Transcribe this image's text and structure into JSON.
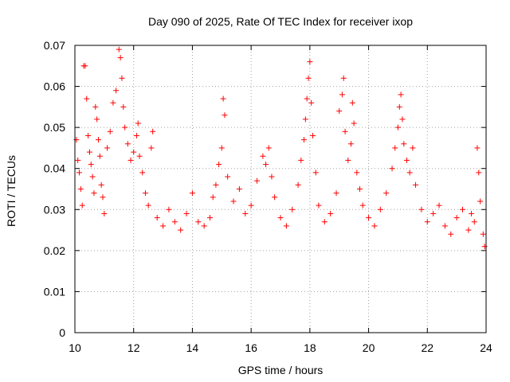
{
  "chart_data": {
    "type": "scatter",
    "title": "Day 090 of 2025, Rate Of TEC Index for receiver ixop",
    "xlabel": "GPS time / hours",
    "ylabel": "ROTI / TECUs",
    "xlim": [
      10,
      24
    ],
    "ylim": [
      0,
      0.07
    ],
    "x_ticks": [
      10,
      12,
      14,
      16,
      18,
      20,
      22,
      24
    ],
    "x_tick_labels": [
      "10",
      "12",
      "14",
      "16",
      "18",
      "20",
      "22",
      "24"
    ],
    "y_ticks": [
      0,
      0.01,
      0.02,
      0.03,
      0.04,
      0.05,
      0.06,
      0.07
    ],
    "y_tick_labels": [
      "0",
      "0.01",
      "0.02",
      "0.03",
      "0.04",
      "0.05",
      "0.06",
      "0.07"
    ],
    "grid": true,
    "marker": "+",
    "color": "#ff0000",
    "series": [
      {
        "name": "ROTI",
        "points": [
          [
            10.05,
            0.047
          ],
          [
            10.1,
            0.042
          ],
          [
            10.15,
            0.039
          ],
          [
            10.2,
            0.035
          ],
          [
            10.25,
            0.031
          ],
          [
            10.3,
            0.065
          ],
          [
            10.35,
            0.065
          ],
          [
            10.4,
            0.057
          ],
          [
            10.45,
            0.048
          ],
          [
            10.5,
            0.044
          ],
          [
            10.55,
            0.041
          ],
          [
            10.6,
            0.038
          ],
          [
            10.65,
            0.034
          ],
          [
            10.7,
            0.055
          ],
          [
            10.75,
            0.052
          ],
          [
            10.8,
            0.047
          ],
          [
            10.85,
            0.043
          ],
          [
            10.9,
            0.036
          ],
          [
            10.95,
            0.033
          ],
          [
            11.0,
            0.029
          ],
          [
            11.1,
            0.045
          ],
          [
            11.2,
            0.049
          ],
          [
            11.3,
            0.056
          ],
          [
            11.4,
            0.059
          ],
          [
            11.5,
            0.069
          ],
          [
            11.55,
            0.067
          ],
          [
            11.6,
            0.062
          ],
          [
            11.65,
            0.055
          ],
          [
            11.7,
            0.05
          ],
          [
            11.8,
            0.046
          ],
          [
            11.9,
            0.042
          ],
          [
            12.0,
            0.044
          ],
          [
            12.1,
            0.048
          ],
          [
            12.15,
            0.051
          ],
          [
            12.2,
            0.043
          ],
          [
            12.3,
            0.039
          ],
          [
            12.4,
            0.034
          ],
          [
            12.5,
            0.031
          ],
          [
            12.6,
            0.045
          ],
          [
            12.65,
            0.049
          ],
          [
            12.8,
            0.028
          ],
          [
            13.0,
            0.026
          ],
          [
            13.2,
            0.03
          ],
          [
            13.4,
            0.027
          ],
          [
            13.6,
            0.025
          ],
          [
            13.8,
            0.029
          ],
          [
            14.0,
            0.034
          ],
          [
            14.2,
            0.027
          ],
          [
            14.4,
            0.026
          ],
          [
            14.6,
            0.028
          ],
          [
            14.7,
            0.033
          ],
          [
            14.8,
            0.036
          ],
          [
            14.9,
            0.041
          ],
          [
            15.0,
            0.045
          ],
          [
            15.05,
            0.057
          ],
          [
            15.1,
            0.053
          ],
          [
            15.2,
            0.038
          ],
          [
            15.4,
            0.032
          ],
          [
            15.6,
            0.035
          ],
          [
            15.8,
            0.029
          ],
          [
            16.0,
            0.031
          ],
          [
            16.2,
            0.037
          ],
          [
            16.4,
            0.043
          ],
          [
            16.5,
            0.041
          ],
          [
            16.6,
            0.045
          ],
          [
            16.7,
            0.038
          ],
          [
            16.8,
            0.033
          ],
          [
            17.0,
            0.028
          ],
          [
            17.2,
            0.026
          ],
          [
            17.4,
            0.03
          ],
          [
            17.6,
            0.036
          ],
          [
            17.7,
            0.042
          ],
          [
            17.8,
            0.047
          ],
          [
            17.85,
            0.052
          ],
          [
            17.9,
            0.057
          ],
          [
            17.95,
            0.062
          ],
          [
            18.0,
            0.066
          ],
          [
            18.05,
            0.056
          ],
          [
            18.1,
            0.048
          ],
          [
            18.2,
            0.039
          ],
          [
            18.3,
            0.031
          ],
          [
            18.5,
            0.027
          ],
          [
            18.7,
            0.029
          ],
          [
            18.9,
            0.034
          ],
          [
            19.0,
            0.054
          ],
          [
            19.1,
            0.058
          ],
          [
            19.15,
            0.062
          ],
          [
            19.2,
            0.049
          ],
          [
            19.3,
            0.042
          ],
          [
            19.4,
            0.046
          ],
          [
            19.45,
            0.056
          ],
          [
            19.5,
            0.051
          ],
          [
            19.6,
            0.039
          ],
          [
            19.7,
            0.035
          ],
          [
            19.8,
            0.031
          ],
          [
            20.0,
            0.028
          ],
          [
            20.2,
            0.026
          ],
          [
            20.4,
            0.03
          ],
          [
            20.6,
            0.034
          ],
          [
            20.8,
            0.04
          ],
          [
            20.9,
            0.045
          ],
          [
            21.0,
            0.05
          ],
          [
            21.05,
            0.055
          ],
          [
            21.1,
            0.058
          ],
          [
            21.15,
            0.052
          ],
          [
            21.2,
            0.046
          ],
          [
            21.3,
            0.042
          ],
          [
            21.4,
            0.039
          ],
          [
            21.5,
            0.045
          ],
          [
            21.6,
            0.036
          ],
          [
            21.8,
            0.03
          ],
          [
            22.0,
            0.027
          ],
          [
            22.2,
            0.029
          ],
          [
            22.4,
            0.031
          ],
          [
            22.6,
            0.026
          ],
          [
            22.8,
            0.024
          ],
          [
            23.0,
            0.028
          ],
          [
            23.2,
            0.03
          ],
          [
            23.4,
            0.025
          ],
          [
            23.5,
            0.029
          ],
          [
            23.6,
            0.027
          ],
          [
            23.7,
            0.045
          ],
          [
            23.75,
            0.039
          ],
          [
            23.8,
            0.032
          ],
          [
            23.9,
            0.024
          ],
          [
            23.95,
            0.021
          ]
        ]
      }
    ]
  }
}
